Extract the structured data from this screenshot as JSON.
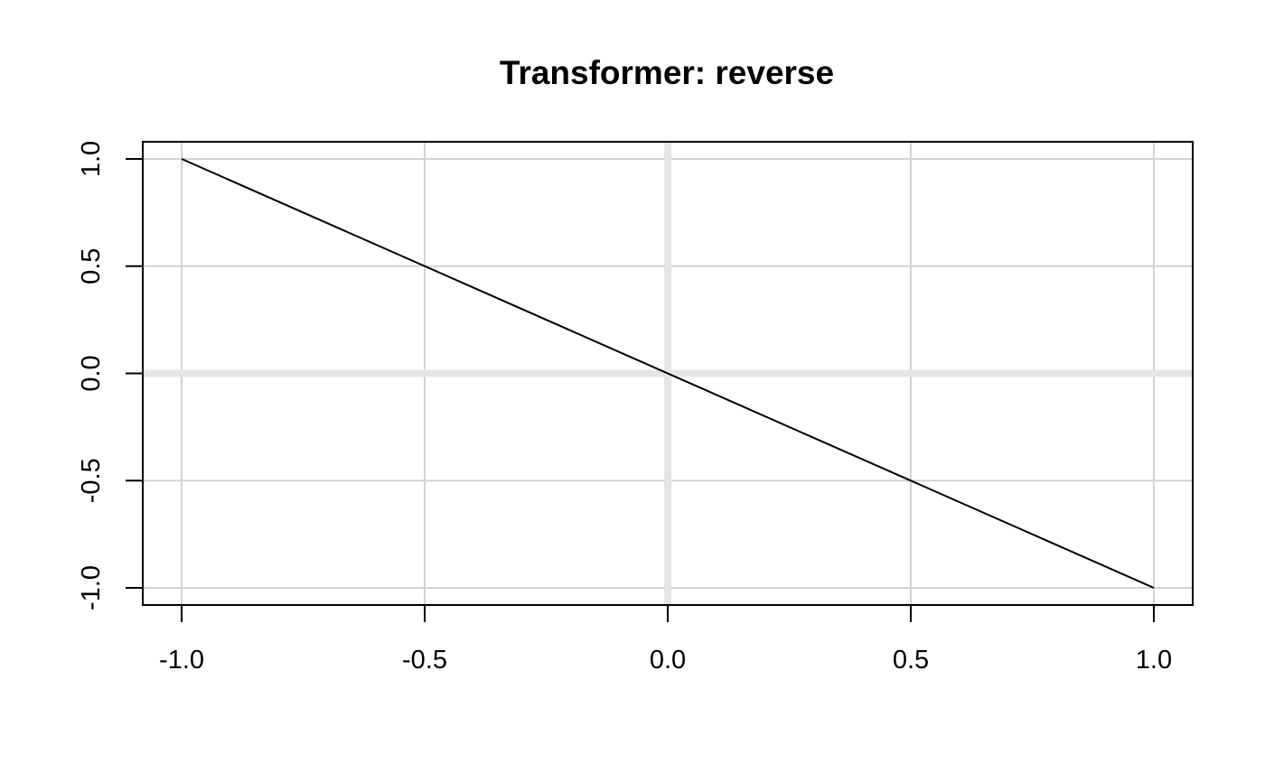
{
  "chart_data": {
    "type": "line",
    "title": "Transformer: reverse",
    "xlabel": "",
    "ylabel": "",
    "xlim": [
      -1.08,
      1.08
    ],
    "ylim": [
      -1.08,
      1.08
    ],
    "x_ticks": [
      -1.0,
      -0.5,
      0.0,
      0.5,
      1.0
    ],
    "x_tick_labels": [
      "-1.0",
      "-0.5",
      "0.0",
      "0.5",
      "1.0"
    ],
    "y_ticks": [
      -1.0,
      -0.5,
      0.0,
      0.5,
      1.0
    ],
    "y_tick_labels": [
      "-1.0",
      "-0.5",
      "0.0",
      "0.5",
      "1.0"
    ],
    "grid": true,
    "zero_lines": true,
    "colors": {
      "line": "#000000",
      "grid": "#d3d3d3",
      "zero_line": "#e5e5e5",
      "axes": "#000000"
    },
    "series": [
      {
        "x": [
          -1.0,
          1.0
        ],
        "y": [
          1.0,
          -1.0
        ]
      }
    ]
  }
}
